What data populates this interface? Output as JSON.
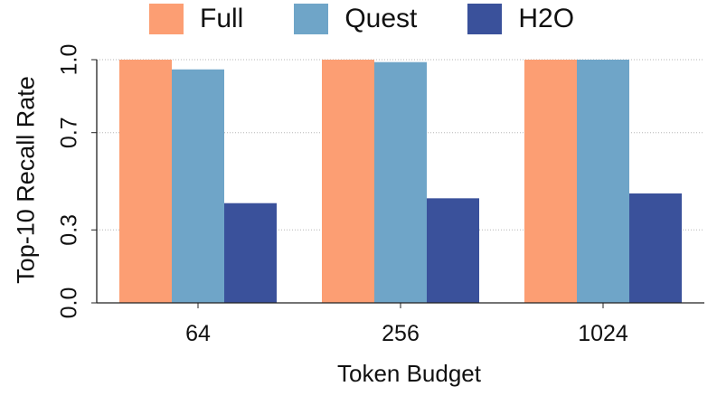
{
  "chart_data": {
    "type": "bar",
    "categories": [
      "64",
      "256",
      "1024"
    ],
    "series": [
      {
        "name": "Full",
        "values": [
          1.0,
          1.0,
          1.0
        ],
        "color": "#FC9E73"
      },
      {
        "name": "Quest",
        "values": [
          0.96,
          0.99,
          1.0
        ],
        "color": "#6FA5C8"
      },
      {
        "name": "H2O",
        "values": [
          0.41,
          0.43,
          0.45
        ],
        "color": "#3A519B"
      }
    ],
    "xlabel": "Token Budget",
    "ylabel": "Top-10 Recall Rate",
    "ylim": [
      0.0,
      1.0
    ],
    "yticks": [
      "0.0",
      "0.3",
      "0.7",
      "1.0"
    ],
    "grid": "horizontal dotted",
    "legend_position": "top"
  }
}
